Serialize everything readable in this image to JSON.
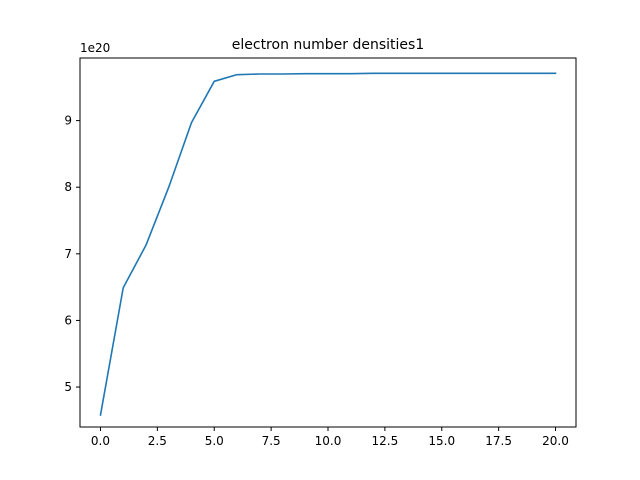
{
  "chart_data": {
    "type": "line",
    "title": "electron number densities1",
    "xlabel": "",
    "ylabel": "",
    "y_offset_label": "1e20",
    "xlim": [
      -0.9,
      20.9
    ],
    "ylim": [
      4.4,
      9.94
    ],
    "x_ticks": [
      0,
      2.5,
      5,
      7.5,
      10,
      12.5,
      15,
      17.5,
      20
    ],
    "x_tick_labels": [
      "0.0",
      "2.5",
      "5.0",
      "7.5",
      "10.0",
      "12.5",
      "15.0",
      "17.5",
      "20.0"
    ],
    "y_ticks": [
      5,
      6,
      7,
      8,
      9
    ],
    "y_tick_labels": [
      "5",
      "6",
      "7",
      "8",
      "9"
    ],
    "grid": false,
    "line_color": "#1f77b4",
    "series": [
      {
        "x": [
          0,
          1,
          2,
          3,
          4,
          5,
          6,
          7,
          8,
          9,
          10,
          11,
          12,
          13,
          14,
          15,
          16,
          17,
          18,
          19,
          20
        ],
        "values": [
          4.58,
          6.49,
          7.13,
          8.0,
          8.97,
          9.59,
          9.69,
          9.7,
          9.7,
          9.705,
          9.705,
          9.705,
          9.71,
          9.71,
          9.71,
          9.71,
          9.71,
          9.71,
          9.71,
          9.71,
          9.71
        ]
      }
    ]
  }
}
